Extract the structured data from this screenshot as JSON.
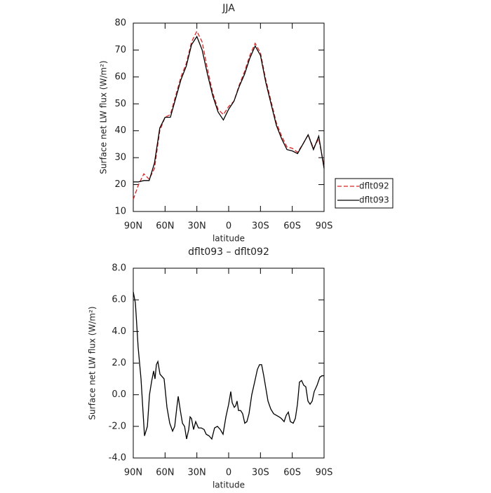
{
  "chart_data": [
    {
      "type": "line",
      "title": "JJA",
      "x_label": "latitude",
      "y_label": "Surface net LW flux (W/m²)",
      "x": [
        90,
        85,
        80,
        75,
        70,
        65,
        60,
        55,
        50,
        45,
        40,
        35,
        30,
        25,
        20,
        15,
        10,
        5,
        0,
        -5,
        -10,
        -15,
        -20,
        -25,
        -30,
        -35,
        -40,
        -45,
        -50,
        -55,
        -60,
        -65,
        -70,
        -75,
        -80,
        -85,
        -90
      ],
      "series": [
        {
          "name": "dflt092",
          "color": "#e02020",
          "line_style": "dashed",
          "values": [
            14.5,
            20,
            24,
            22,
            26,
            40,
            45,
            46,
            53,
            60,
            65,
            73,
            77,
            73,
            63,
            54,
            48,
            46,
            49,
            51,
            57,
            62,
            68,
            72.5,
            69,
            59,
            51,
            43,
            38,
            34,
            33.5,
            32,
            35,
            38.5,
            33.5,
            37,
            27
          ]
        },
        {
          "name": "dflt093",
          "color": "#000000",
          "line_style": "solid",
          "values": [
            21,
            21,
            21.5,
            21.5,
            28,
            41,
            45,
            45,
            52,
            59,
            64,
            72,
            75,
            70,
            61,
            53,
            47,
            44,
            48,
            51,
            56.5,
            61,
            67,
            71.5,
            68,
            58,
            50,
            42,
            37,
            33,
            32.5,
            31.5,
            35,
            38.5,
            33,
            38,
            26
          ]
        }
      ],
      "xlim": [
        90,
        -90
      ],
      "xticks": [
        {
          "value": 90,
          "label": "90N"
        },
        {
          "value": 60,
          "label": "60N"
        },
        {
          "value": 30,
          "label": "30N"
        },
        0,
        {
          "value": -30,
          "label": "30S"
        },
        {
          "value": -60,
          "label": "60S"
        },
        {
          "value": -90,
          "label": "90S"
        }
      ],
      "ylim": [
        10,
        80
      ],
      "yticks": [
        10,
        20,
        30,
        40,
        50,
        60,
        70,
        80
      ],
      "legend": "outside right"
    },
    {
      "type": "line",
      "title": "dflt093 – dflt092",
      "x_label": "latitude",
      "y_label": "Surface net LW flux (W/m²)",
      "x": [
        90,
        88,
        85.4,
        82.7,
        79.4,
        76.7,
        74.7,
        72.8,
        70.8,
        69.5,
        68.2,
        66.8,
        64.8,
        60.9,
        58.2,
        55.6,
        52.9,
        50.9,
        48.9,
        47.6,
        45.6,
        43.6,
        41.6,
        39.7,
        37.7,
        36.4,
        35.1,
        33.1,
        31.1,
        28.5,
        25.8,
        23.2,
        21.2,
        18.5,
        15.9,
        13.3,
        10.6,
        7.9,
        5.3,
        2.6,
        0,
        -2,
        -3.3,
        -5.3,
        -6.6,
        -7.9,
        -9.3,
        -11.3,
        -13.2,
        -15.2,
        -17.2,
        -19.2,
        -21.8,
        -24.5,
        -27.1,
        -29.1,
        -31.1,
        -33.1,
        -35.1,
        -37.1,
        -39.7,
        -42.4,
        -45,
        -47.6,
        -49.6,
        -52.3,
        -54.3,
        -56.3,
        -58.2,
        -60.9,
        -62.9,
        -64.9,
        -66.8,
        -68.8,
        -70.8,
        -72.8,
        -74.8,
        -76.8,
        -78.8,
        -80.7,
        -83.4,
        -86,
        -88,
        -90
      ],
      "series": [
        {
          "color": "#000000",
          "line_style": "solid",
          "values": [
            6.5,
            5.8,
            3,
            1,
            -2.6,
            -2,
            0,
            0.8,
            1.5,
            1,
            1.9,
            2.1,
            1.3,
            1,
            -0.8,
            -1.8,
            -2.3,
            -2,
            -0.8,
            -0.1,
            -1,
            -1.8,
            -2,
            -2.8,
            -2.2,
            -1.4,
            -1.5,
            -2.2,
            -1.7,
            -2.1,
            -2.1,
            -2.2,
            -2.5,
            -2.6,
            -2.8,
            -2.1,
            -2,
            -2.2,
            -2.5,
            -1.4,
            -0.6,
            0.2,
            -0.5,
            -0.8,
            -0.7,
            -0.4,
            -1,
            -1,
            -1.2,
            -1.8,
            -1.7,
            -1.2,
            0,
            0.8,
            1.6,
            1.9,
            1.9,
            1.2,
            0.4,
            -0.4,
            -0.9,
            -1.2,
            -1.3,
            -1.4,
            -1.5,
            -1.7,
            -1.3,
            -1.1,
            -1.7,
            -1.8,
            -1.5,
            -0.6,
            0.8,
            0.9,
            0.6,
            0.5,
            -0.4,
            -0.6,
            -0.4,
            0.2,
            0.6,
            1.1,
            1.2,
            1.2
          ]
        }
      ],
      "xlim": [
        90,
        -90
      ],
      "xticks": [
        {
          "value": 90,
          "label": "90N"
        },
        {
          "value": 60,
          "label": "60N"
        },
        {
          "value": 30,
          "label": "30N"
        },
        0,
        {
          "value": -30,
          "label": "30S"
        },
        {
          "value": -60,
          "label": "60S"
        },
        {
          "value": -90,
          "label": "90S"
        }
      ],
      "ylim": [
        -4,
        8
      ],
      "yticks": [
        {
          "value": -4,
          "label": "-4.0"
        },
        {
          "value": -2,
          "label": "-2.0"
        },
        {
          "value": 0,
          "label": "0.0"
        },
        {
          "value": 2,
          "label": "2.0"
        },
        {
          "value": 4,
          "label": "4.0"
        },
        {
          "value": 6,
          "label": "6.0"
        },
        {
          "value": 8,
          "label": "8.0"
        }
      ]
    }
  ]
}
